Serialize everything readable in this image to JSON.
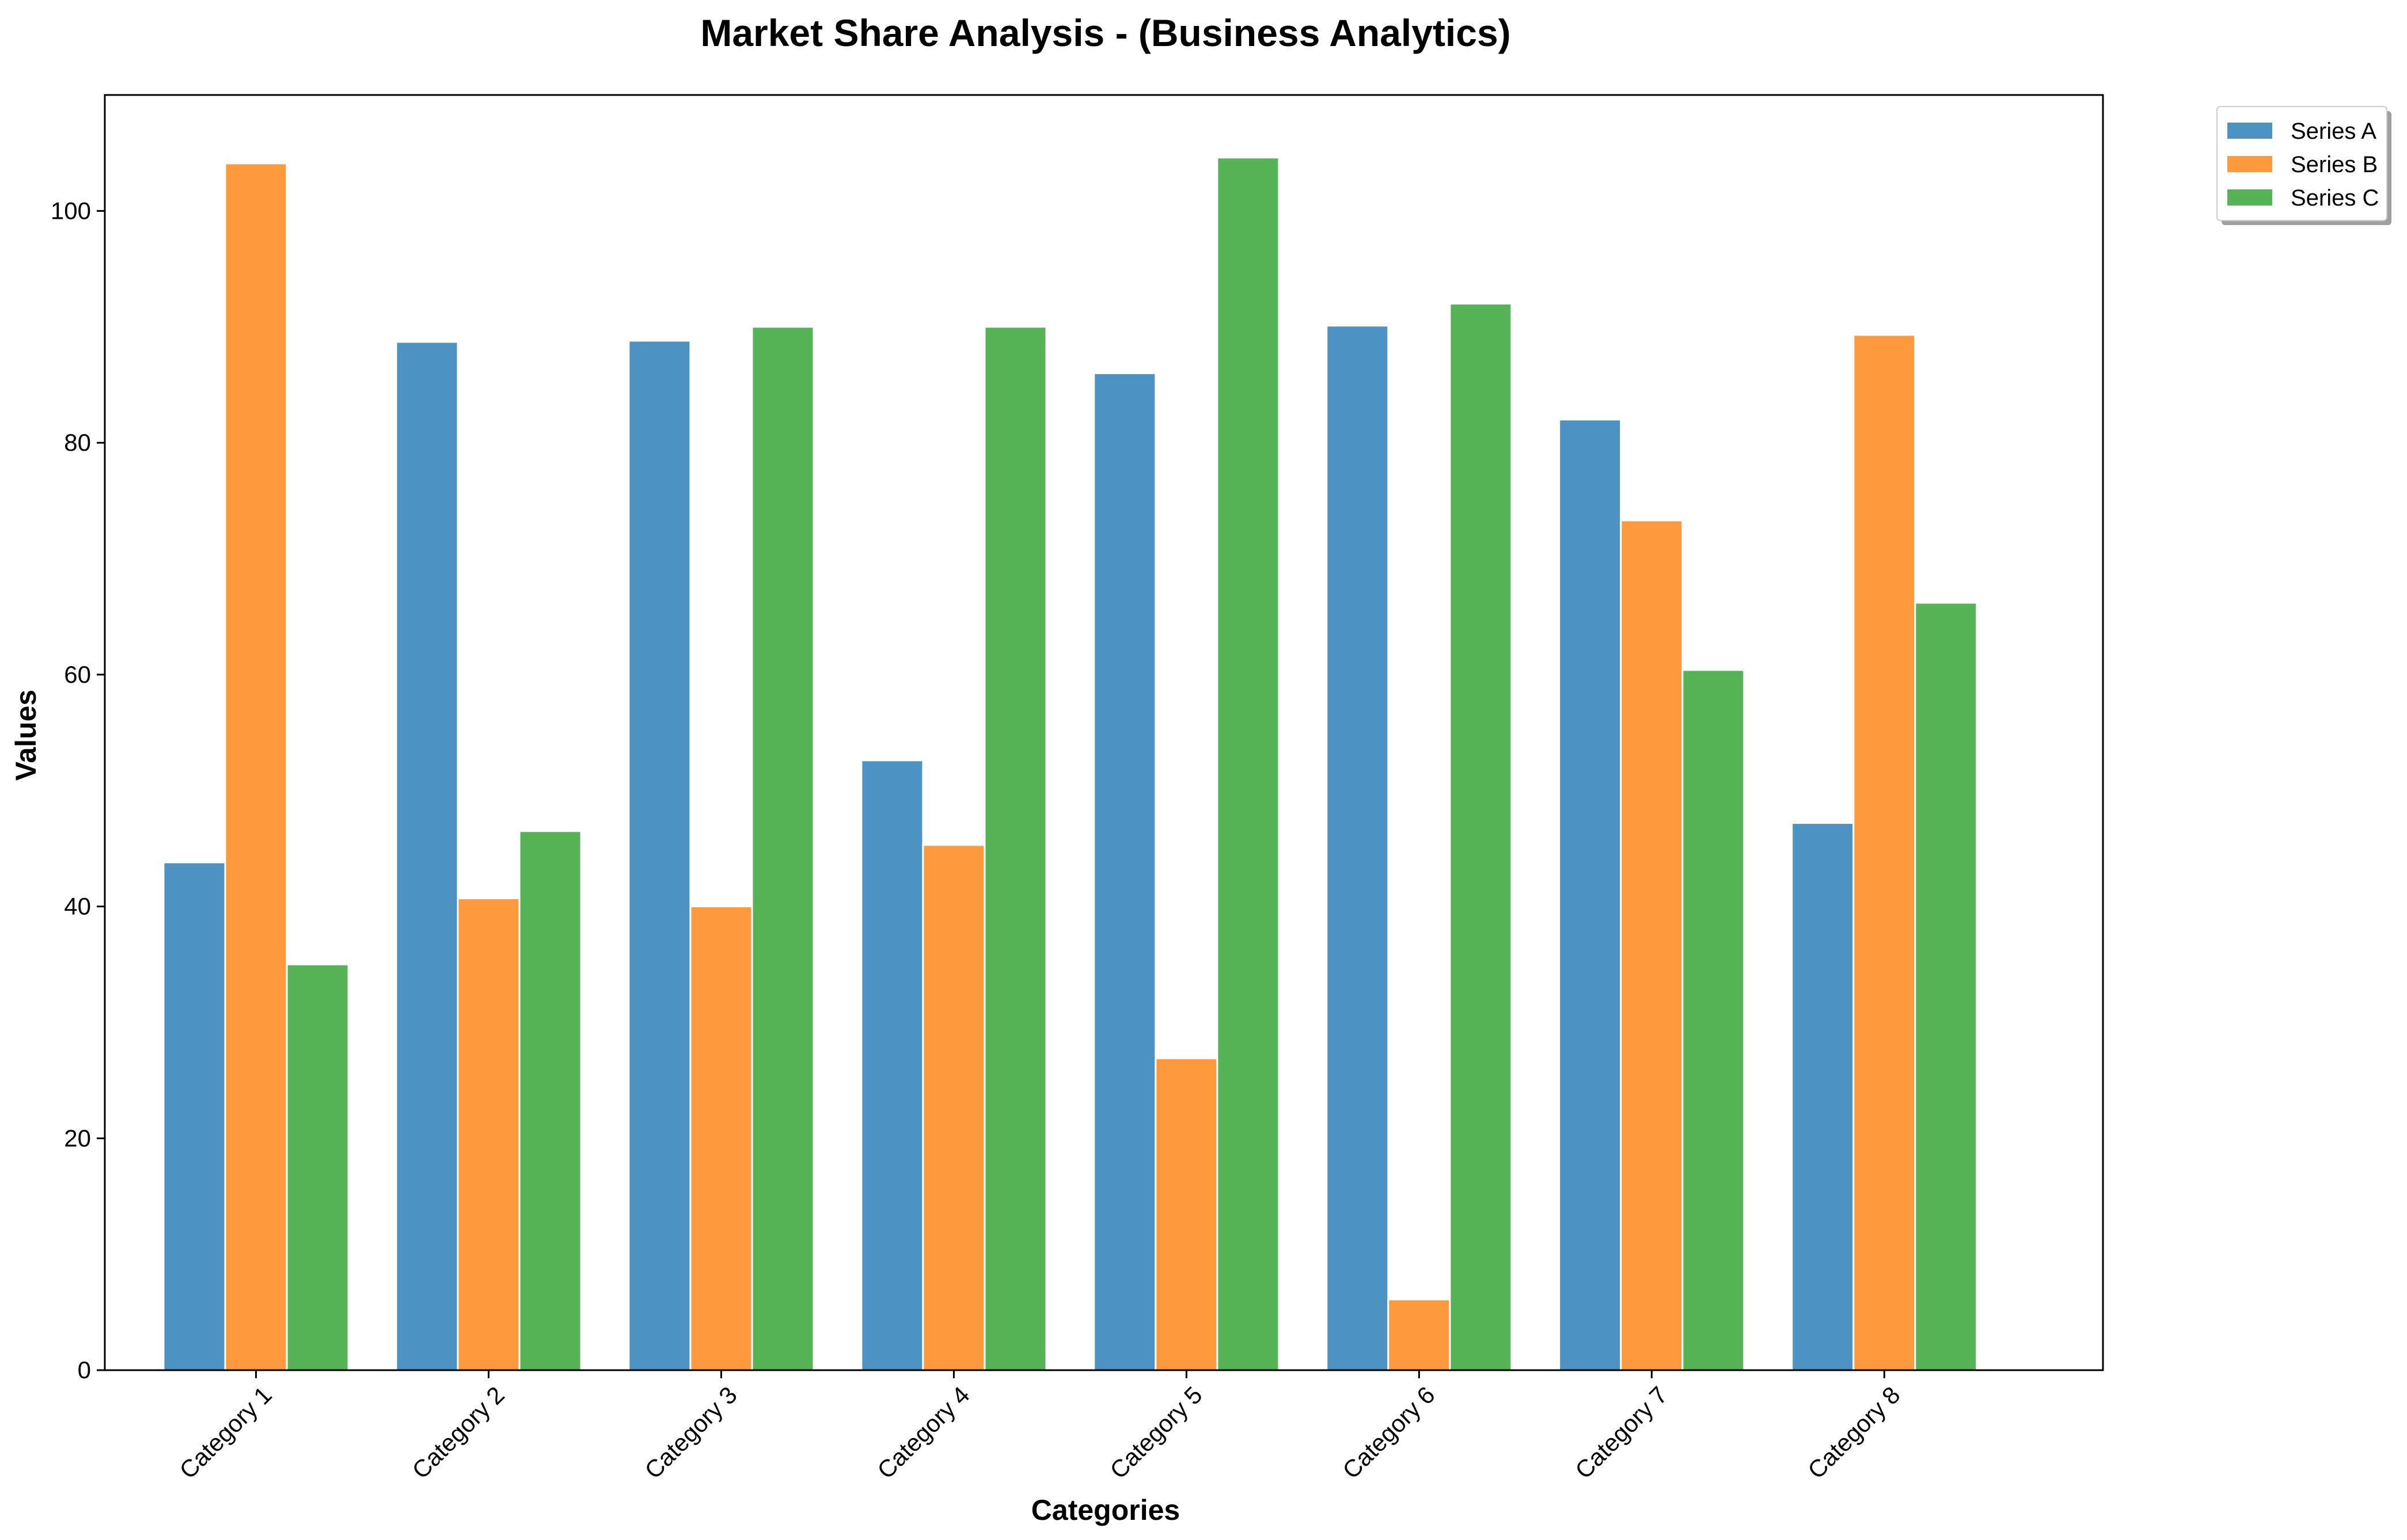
{
  "chart_data": {
    "type": "bar",
    "title": "Market Share Analysis - (Business Analytics)",
    "xlabel": "Categories",
    "ylabel": "Values",
    "categories": [
      "Category 1",
      "Category 2",
      "Category 3",
      "Category 4",
      "Category 5",
      "Category 6",
      "Category 7",
      "Category 8"
    ],
    "series": [
      {
        "name": "Series A",
        "color": "#4c92c3",
        "values": [
          43.8,
          88.7,
          88.8,
          52.6,
          86.0,
          90.1,
          82.0,
          47.2
        ]
      },
      {
        "name": "Series B",
        "color": "#ff993e",
        "values": [
          104.1,
          40.7,
          40.0,
          45.3,
          26.9,
          6.1,
          73.3,
          89.3
        ]
      },
      {
        "name": "Series C",
        "color": "#56b356",
        "values": [
          35.0,
          46.5,
          90.0,
          90.0,
          104.6,
          92.0,
          60.4,
          66.2
        ]
      }
    ],
    "ylim": [
      0,
      110
    ],
    "yticks": [
      0,
      20,
      40,
      60,
      80,
      100
    ],
    "grid": false,
    "legend_position": "top-right"
  }
}
